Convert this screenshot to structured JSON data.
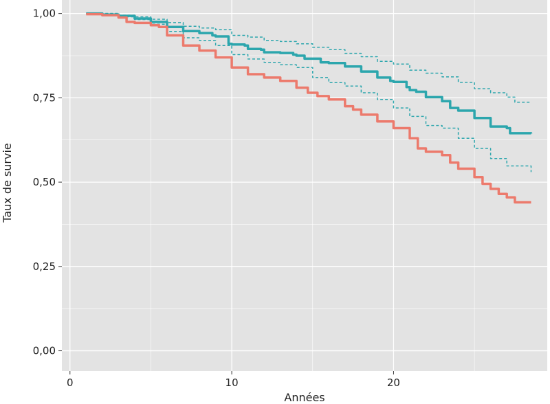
{
  "chart_data": {
    "type": "line",
    "title": "",
    "xlabel": "Années",
    "ylabel": "Taux de survie",
    "xlim": [
      -0.5,
      29.5
    ],
    "ylim": [
      -0.06,
      1.04
    ],
    "x_ticks": [
      0,
      10,
      20
    ],
    "x_tick_labels": [
      "0",
      "10",
      "20"
    ],
    "y_ticks": [
      0,
      0.25,
      0.5,
      0.75,
      1.0
    ],
    "y_tick_labels": [
      "0,00",
      "0,25",
      "0,50",
      "0,75",
      "1,00"
    ],
    "grid": true,
    "legend": "none",
    "colors": {
      "panel": "#e3e3e3",
      "teal": "#2ca6ad",
      "salmon": "#ec7a6c"
    },
    "series": [
      {
        "color": "#2ca6ad",
        "style": "solid",
        "width": 3.5,
        "x": [
          1,
          2,
          3,
          4,
          5,
          6,
          7,
          8,
          8.8,
          9,
          9.8,
          10,
          10.8,
          11,
          11.8,
          12,
          12.8,
          13,
          13.8,
          14,
          14.5,
          15,
          15.5,
          16,
          17,
          18,
          19,
          19.8,
          20,
          20.8,
          21,
          21.4,
          22,
          22.5,
          22.8,
          23,
          23.5,
          24,
          25,
          26,
          27,
          27.2,
          28.5
        ],
        "y": [
          1.0,
          0.997,
          0.993,
          0.985,
          0.975,
          0.96,
          0.948,
          0.942,
          0.935,
          0.932,
          0.91,
          0.908,
          0.905,
          0.895,
          0.893,
          0.885,
          0.885,
          0.883,
          0.878,
          0.875,
          0.866,
          0.866,
          0.855,
          0.853,
          0.843,
          0.828,
          0.81,
          0.8,
          0.797,
          0.782,
          0.773,
          0.768,
          0.752,
          0.752,
          0.752,
          0.74,
          0.72,
          0.712,
          0.69,
          0.665,
          0.66,
          0.645,
          0.644
        ]
      },
      {
        "color": "#2ca6ad",
        "style": "dashed",
        "width": 1.5,
        "x": [
          1,
          3,
          4,
          5,
          6,
          7,
          8,
          9,
          10,
          11,
          12,
          13,
          14,
          15,
          16,
          17,
          18,
          19,
          20,
          21,
          22,
          23,
          24,
          25,
          26,
          27,
          27.5,
          28.5
        ],
        "y": [
          1.0,
          0.995,
          0.99,
          0.983,
          0.973,
          0.962,
          0.957,
          0.952,
          0.935,
          0.93,
          0.92,
          0.917,
          0.91,
          0.9,
          0.893,
          0.882,
          0.872,
          0.858,
          0.85,
          0.832,
          0.823,
          0.812,
          0.796,
          0.777,
          0.765,
          0.752,
          0.737,
          0.737
        ]
      },
      {
        "color": "#2ca6ad",
        "style": "dashed",
        "width": 1.5,
        "x": [
          1,
          3,
          4,
          5,
          6,
          7,
          8,
          9,
          10,
          11,
          12,
          13,
          14,
          15,
          16,
          17,
          18,
          19,
          20,
          21,
          22,
          23,
          24,
          25,
          26,
          27,
          28.5
        ],
        "y": [
          1.0,
          0.99,
          0.982,
          0.968,
          0.947,
          0.928,
          0.92,
          0.905,
          0.878,
          0.865,
          0.855,
          0.848,
          0.84,
          0.81,
          0.795,
          0.785,
          0.765,
          0.745,
          0.72,
          0.695,
          0.668,
          0.66,
          0.63,
          0.6,
          0.57,
          0.548,
          0.53
        ]
      },
      {
        "color": "#ec7a6c",
        "style": "solid",
        "width": 3.5,
        "x": [
          1,
          2,
          3,
          3.5,
          4,
          5,
          5.5,
          6,
          7,
          8,
          9,
          10,
          11,
          12,
          13,
          14,
          14.7,
          15.3,
          16,
          17,
          17.5,
          18,
          19,
          20,
          21,
          21.5,
          22,
          23,
          23.5,
          24,
          25,
          25.5,
          26,
          26.5,
          27,
          27.5,
          28.5
        ],
        "y": [
          0.998,
          0.995,
          0.988,
          0.975,
          0.972,
          0.965,
          0.96,
          0.935,
          0.905,
          0.89,
          0.87,
          0.84,
          0.82,
          0.81,
          0.8,
          0.78,
          0.765,
          0.755,
          0.745,
          0.725,
          0.715,
          0.7,
          0.68,
          0.66,
          0.63,
          0.6,
          0.59,
          0.58,
          0.558,
          0.54,
          0.515,
          0.495,
          0.48,
          0.465,
          0.455,
          0.44,
          0.44
        ]
      }
    ]
  }
}
